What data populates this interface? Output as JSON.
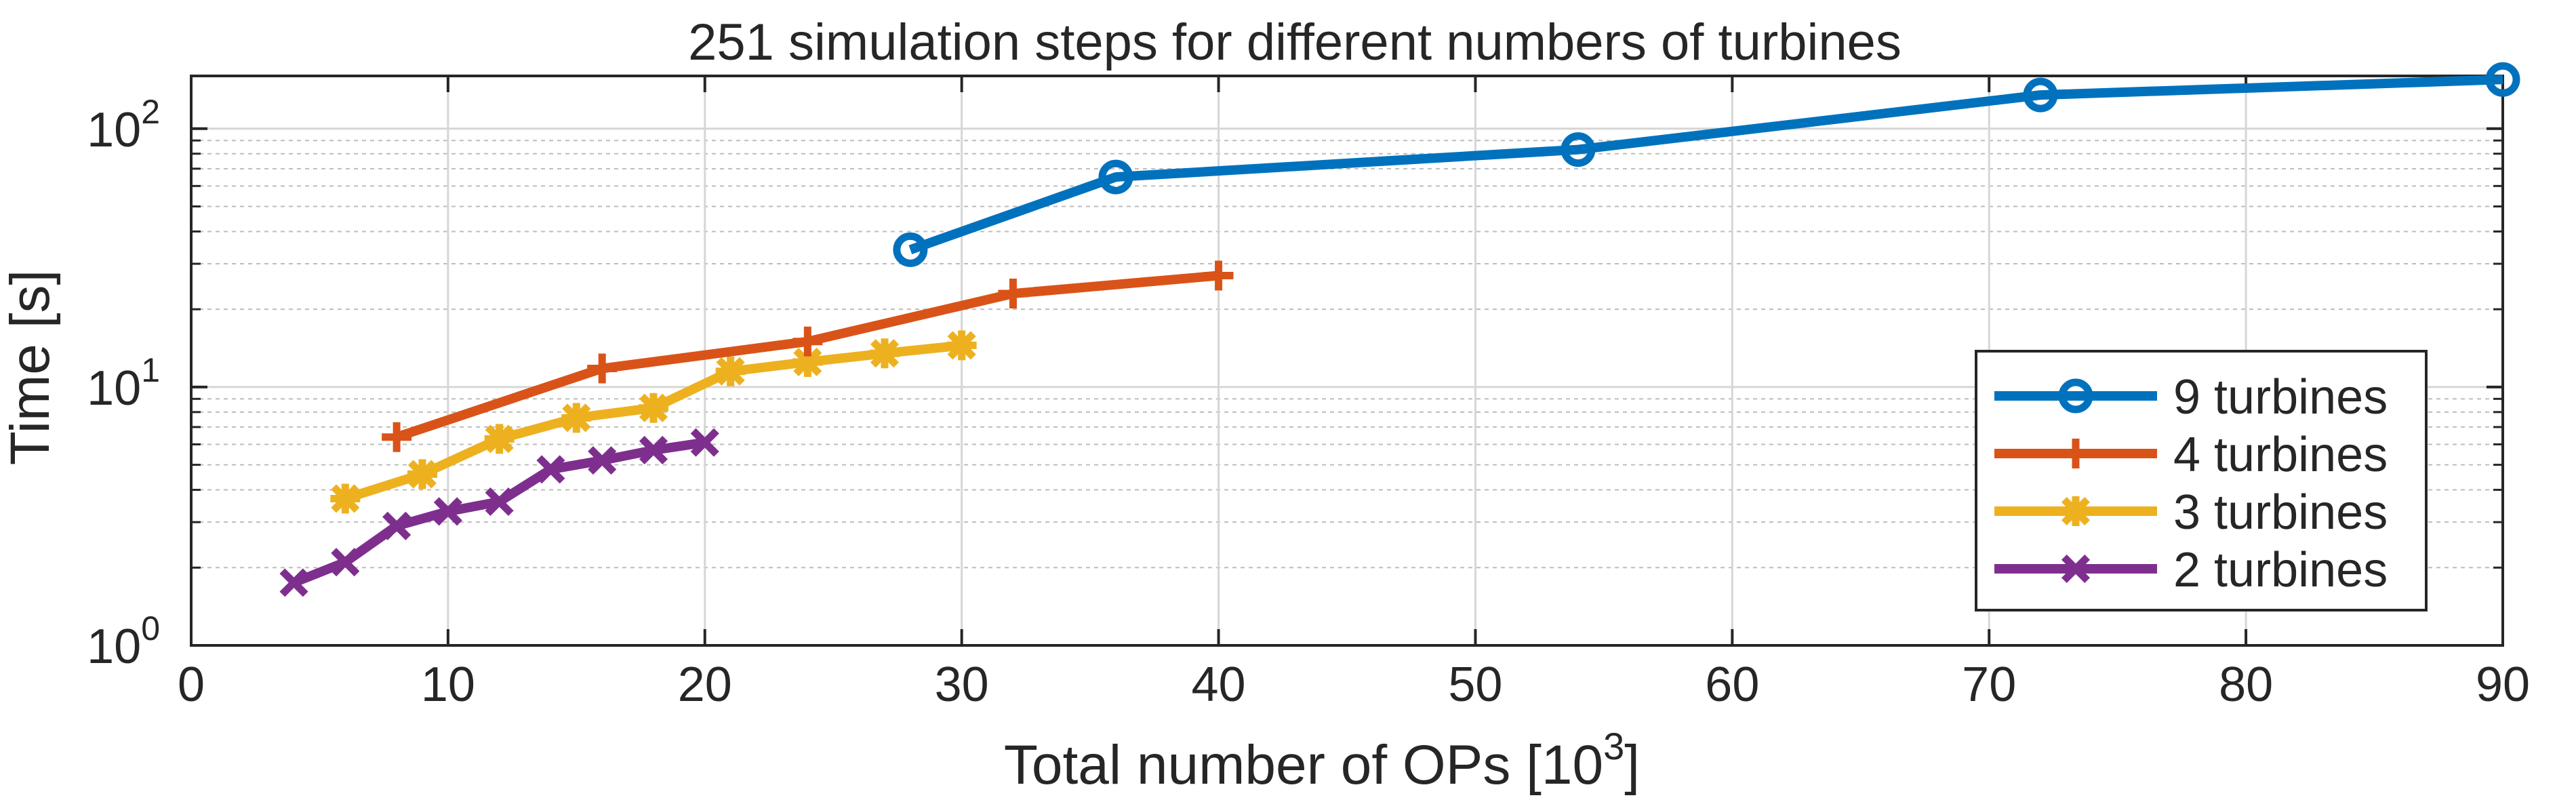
{
  "chart_data": {
    "type": "line",
    "title": "251 simulation steps for different numbers of turbines",
    "xlabel": "Total number of OPs [10",
    "xlabel_sup": "3",
    "xlabel_end": "]",
    "ylabel": "Time [s]",
    "xlim": [
      0,
      90
    ],
    "ylim": [
      1,
      160
    ],
    "yscale": "log",
    "grid": true,
    "minor_grid": true,
    "x_ticks": [
      0,
      10,
      20,
      30,
      40,
      50,
      60,
      70,
      80,
      90
    ],
    "x_tick_labels": [
      "0",
      "10",
      "20",
      "30",
      "40",
      "50",
      "60",
      "70",
      "80",
      "90"
    ],
    "y_ticks": [
      {
        "value": 1,
        "base": "10",
        "exp": "0"
      },
      {
        "value": 10,
        "base": "10",
        "exp": "1"
      },
      {
        "value": 100,
        "base": "10",
        "exp": "2"
      }
    ],
    "legend_position": "bottom-right",
    "series": [
      {
        "name": "9 turbines",
        "color": "#0072BD",
        "marker": "circle",
        "x": [
          28,
          36,
          54,
          72,
          90
        ],
        "y": [
          34,
          65,
          83,
          135,
          155
        ]
      },
      {
        "name": "4 turbines",
        "color": "#D95319",
        "marker": "plus",
        "x": [
          8,
          16,
          24,
          32,
          40
        ],
        "y": [
          6.4,
          11.8,
          15.0,
          23.0,
          27.0
        ]
      },
      {
        "name": "3 turbines",
        "color": "#EDB120",
        "marker": "asterisk",
        "x": [
          6,
          9,
          12,
          15,
          18,
          21,
          24,
          27,
          30
        ],
        "y": [
          3.7,
          4.6,
          6.3,
          7.6,
          8.3,
          11.5,
          12.5,
          13.5,
          14.5
        ]
      },
      {
        "name": "2 turbines",
        "color": "#7E2F8E",
        "marker": "x",
        "x": [
          4,
          6,
          8,
          10,
          12,
          14,
          16,
          18,
          20
        ],
        "y": [
          1.75,
          2.1,
          2.9,
          3.3,
          3.6,
          4.8,
          5.2,
          5.7,
          6.1
        ]
      }
    ]
  }
}
